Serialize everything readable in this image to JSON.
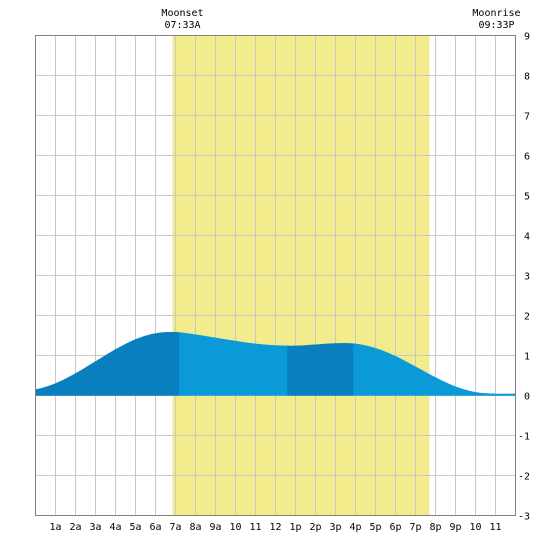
{
  "chart_data": {
    "type": "area",
    "title": "",
    "xlabel": "",
    "ylabel": "",
    "xlim": [
      0,
      24
    ],
    "ylim": [
      -3,
      9
    ],
    "grid": true,
    "x_tick_labels": [
      "1a",
      "2a",
      "3a",
      "4a",
      "5a",
      "6a",
      "7a",
      "8a",
      "9a",
      "10",
      "11",
      "12",
      "1p",
      "2p",
      "3p",
      "4p",
      "5p",
      "6p",
      "7p",
      "8p",
      "9p",
      "10",
      "11"
    ],
    "y_tick_labels": [
      "9",
      "8",
      "7",
      "6",
      "5",
      "4",
      "3",
      "2",
      "1",
      "0",
      "-1",
      "-2",
      "-3"
    ],
    "daylight_span_hours": [
      6.85,
      19.7
    ],
    "daylight_color": "#f2ec8c",
    "tide_curve": {
      "x": [
        0,
        1,
        2,
        3,
        4,
        5,
        6,
        7,
        8,
        9,
        10,
        11,
        12,
        13,
        14,
        15,
        16,
        17,
        18,
        19,
        20,
        21,
        22,
        23,
        24
      ],
      "y": [
        0.15,
        0.3,
        0.55,
        0.85,
        1.15,
        1.4,
        1.55,
        1.58,
        1.52,
        1.44,
        1.36,
        1.29,
        1.25,
        1.24,
        1.27,
        1.3,
        1.29,
        1.18,
        0.98,
        0.72,
        0.45,
        0.22,
        0.08,
        0.04,
        0.04
      ]
    },
    "segments": [
      {
        "from": 0,
        "to": 7.2,
        "color": "#0a7fbf"
      },
      {
        "from": 7.2,
        "to": 12.6,
        "color": "#0a9ad8"
      },
      {
        "from": 12.6,
        "to": 15.9,
        "color": "#0a7fbf"
      },
      {
        "from": 15.9,
        "to": 24,
        "color": "#0a9ad8"
      }
    ]
  },
  "moon": {
    "moonset": {
      "label": "Moonset",
      "time": "07:33A",
      "hour": 7.55
    },
    "moonrise": {
      "label": "Moonrise",
      "time": "09:33P",
      "hour": 21.55
    }
  }
}
